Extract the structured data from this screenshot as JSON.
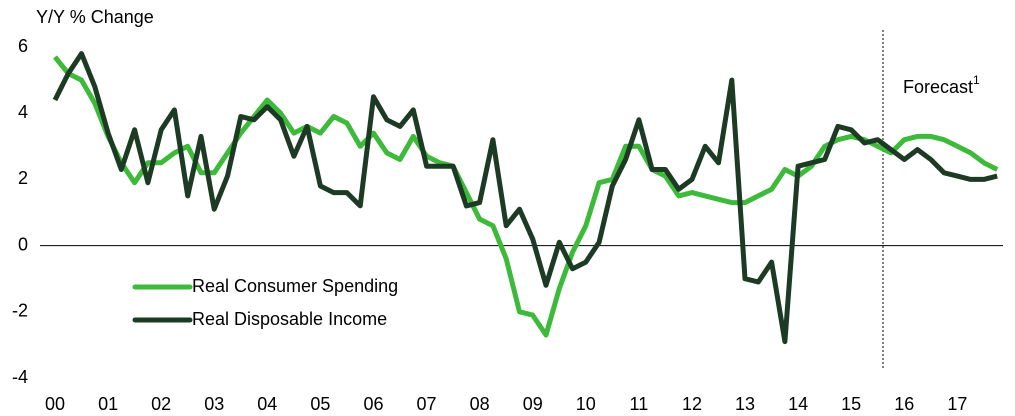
{
  "chart_data": {
    "type": "line",
    "ylabel": "Y/Y % Change",
    "annotation": "Forecast",
    "annotation_superscript": "1",
    "categories": [
      "00",
      null,
      null,
      null,
      "01",
      null,
      null,
      null,
      "02",
      null,
      null,
      null,
      "03",
      null,
      null,
      null,
      "04",
      null,
      null,
      null,
      "05",
      null,
      null,
      null,
      "06",
      null,
      null,
      null,
      "07",
      null,
      null,
      null,
      "08",
      null,
      null,
      null,
      "09",
      null,
      null,
      null,
      "10",
      null,
      null,
      null,
      "11",
      null,
      null,
      null,
      "12",
      null,
      null,
      null,
      "13",
      null,
      null,
      null,
      "14",
      null,
      null,
      null,
      "15",
      null,
      null,
      null,
      "16",
      null,
      null,
      null,
      "17",
      null,
      null,
      null
    ],
    "series": [
      {
        "name": "Real Consumer Spending",
        "color": "#3dba3a",
        "values": [
          5.7,
          5.2,
          5.0,
          4.3,
          3.3,
          2.5,
          1.9,
          2.5,
          2.5,
          2.8,
          3.0,
          2.2,
          2.2,
          2.8,
          3.4,
          3.9,
          4.4,
          4.0,
          3.4,
          3.6,
          3.4,
          3.9,
          3.7,
          3.0,
          3.4,
          2.8,
          2.6,
          3.3,
          2.7,
          2.5,
          2.4,
          1.6,
          0.8,
          0.6,
          -0.4,
          -2.0,
          -2.1,
          -2.7,
          -1.3,
          -0.2,
          0.6,
          1.9,
          2.0,
          3.0,
          3.0,
          2.3,
          2.1,
          1.5,
          1.6,
          1.5,
          1.4,
          1.3,
          1.3,
          1.5,
          1.7,
          2.3,
          2.1,
          2.4,
          3.0,
          3.2,
          3.3,
          3.2,
          3.0,
          2.8,
          3.2,
          3.3,
          3.3,
          3.2,
          3.0,
          2.8,
          2.5,
          2.3
        ]
      },
      {
        "name": "Real Disposable Income",
        "color": "#1d3b24",
        "values": [
          4.4,
          5.2,
          5.8,
          4.8,
          3.4,
          2.3,
          3.5,
          1.9,
          3.5,
          4.1,
          1.5,
          3.3,
          1.1,
          2.1,
          3.9,
          3.8,
          4.2,
          3.8,
          2.7,
          3.6,
          1.8,
          1.6,
          1.6,
          1.2,
          4.5,
          3.8,
          3.6,
          4.1,
          2.4,
          2.4,
          2.4,
          1.2,
          1.3,
          3.2,
          0.6,
          1.1,
          0.2,
          -1.2,
          0.1,
          -0.7,
          -0.5,
          0.1,
          1.8,
          2.6,
          3.8,
          2.3,
          2.3,
          1.7,
          2.0,
          3.0,
          2.5,
          5.0,
          -1.0,
          -1.1,
          -0.5,
          -2.9,
          2.4,
          2.5,
          2.6,
          3.6,
          3.5,
          3.1,
          3.2,
          2.9,
          2.6,
          2.9,
          2.6,
          2.2,
          2.1,
          2.0,
          2.0,
          2.1
        ]
      }
    ],
    "ylim": [
      -4,
      6
    ],
    "yticks": [
      -4,
      -2,
      0,
      2,
      4,
      6
    ],
    "grid": false
  }
}
